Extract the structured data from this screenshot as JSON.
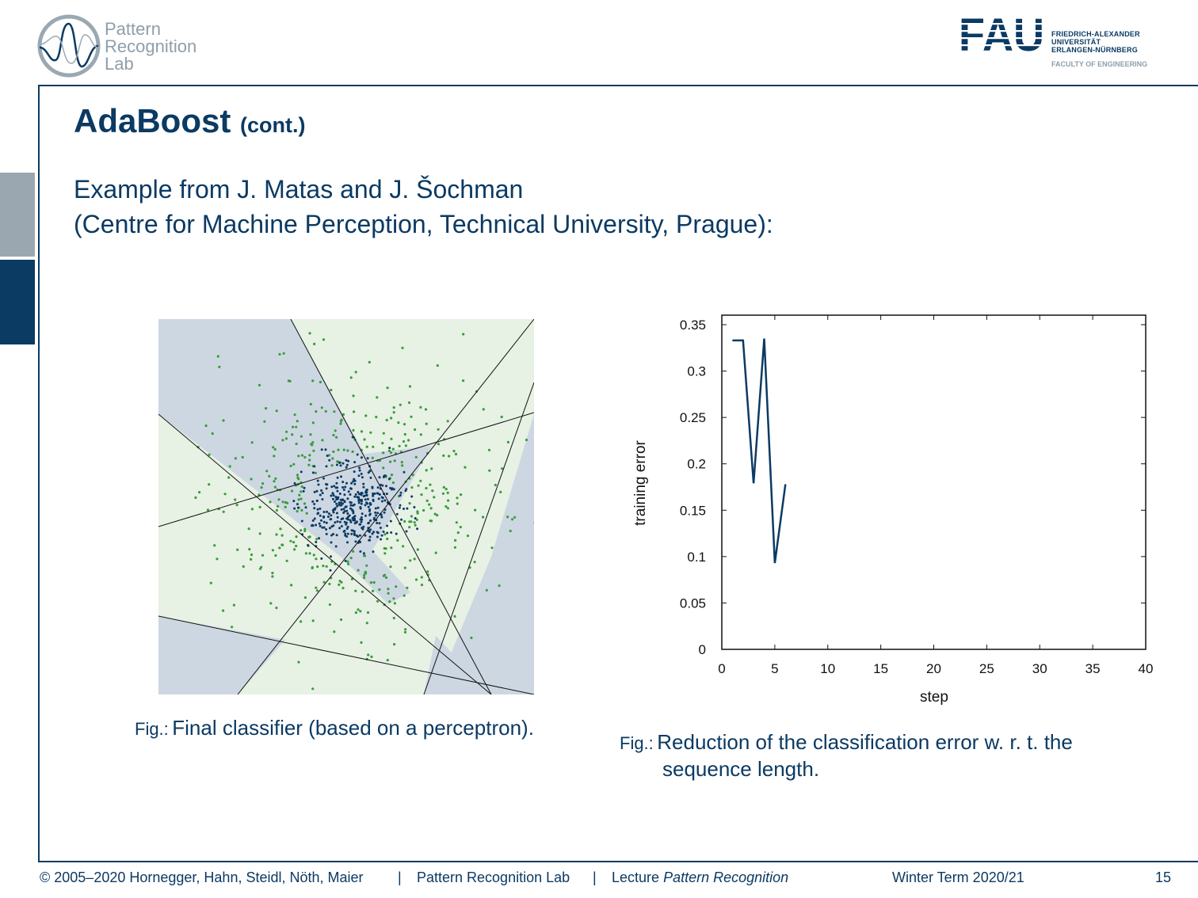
{
  "header": {
    "lab_name": [
      "Pattern",
      "Recognition",
      "Lab"
    ],
    "university_logo_text": "FAU",
    "university_name": [
      "FRIEDRICH-ALEXANDER",
      "UNIVERSITÄT",
      "ERLANGEN-NÜRNBERG"
    ],
    "faculty": "FACULTY OF ENGINEERING"
  },
  "slide": {
    "title": "AdaBoost",
    "title_suffix": "(cont.)",
    "intro_lines": [
      "Example from J. Matas and J. Šochman",
      "(Centre for Machine Perception, Technical University, Prague):"
    ]
  },
  "figure_left": {
    "caption_label": "Fig.:",
    "caption_text": "Final classifier (based on a perceptron)."
  },
  "figure_right": {
    "caption_label": "Fig.:",
    "caption_lines": [
      "Reduction of the classification error w. r. t. the",
      "sequence length."
    ]
  },
  "colors": {
    "primary": "#0b3a63",
    "grey": "#8f9ea9",
    "region_blue": "#cdd7e2",
    "region_green": "#e7f1e4",
    "point_green": "#3a9c3a",
    "point_blue": "#0b3a63"
  },
  "chart_data": [
    {
      "type": "scatter",
      "title": "",
      "xlabel": "",
      "ylabel": "",
      "series": [
        {
          "description_color": "blue",
          "distribution": "dense cluster around center (~0.52, 0.50)"
        },
        {
          "description_color": "green",
          "distribution": "ring surrounding blue cluster"
        }
      ],
      "grid": false
    },
    {
      "type": "line",
      "title": "",
      "xlabel": "step",
      "ylabel": "training error",
      "xlim": [
        0,
        40
      ],
      "ylim": [
        0,
        0.35
      ],
      "xticks": [
        "0",
        "5",
        "10",
        "15",
        "20",
        "25",
        "30",
        "35",
        "40"
      ],
      "yticks": [
        "0",
        "0.05",
        "0.1",
        "0.15",
        "0.2",
        "0.25",
        "0.3",
        "0.35"
      ],
      "x": [
        1,
        2,
        3,
        4,
        5,
        6
      ],
      "values": [
        0.333,
        0.333,
        0.179,
        0.335,
        0.093,
        0.178
      ],
      "grid": false
    }
  ],
  "footer": {
    "copyright": "© 2005–2020 Hornegger, Hahn, Steidl, Nöth, Maier",
    "sep1": "|",
    "lab": "Pattern Recognition Lab",
    "sep2": "|",
    "lecture_prefix": "Lecture",
    "lecture_name": "Pattern Recognition",
    "term": "Winter Term 2020/21",
    "page": "15"
  }
}
